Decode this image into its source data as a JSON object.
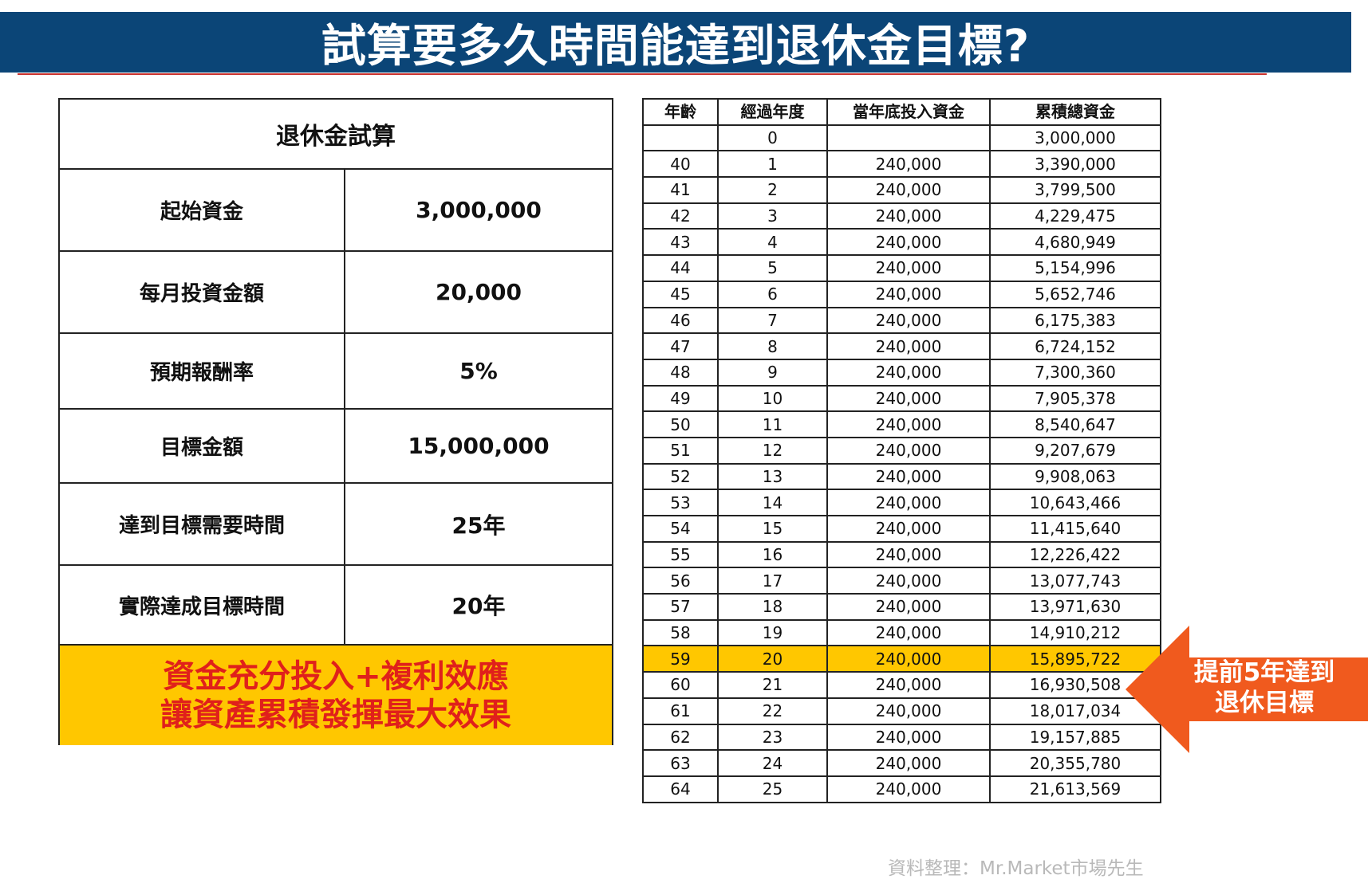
{
  "title": "試算要多久時間能達到退休金目標?",
  "summary": {
    "heading": "退休金試算",
    "rows": [
      {
        "label": "起始資金",
        "value": "3,000,000"
      },
      {
        "label": "每月投資金額",
        "value": "20,000"
      },
      {
        "label": "預期報酬率",
        "value": "5%"
      },
      {
        "label": "目標金額",
        "value": "15,000,000"
      },
      {
        "label": "達到目標需要時間",
        "value": "25年"
      },
      {
        "label": "實際達成目標時間",
        "value": "20年"
      }
    ],
    "footer_line1": "資金充分投入+複利效應",
    "footer_line2": "讓資產累積發揮最大效果"
  },
  "table": {
    "headers": [
      "年齡",
      "經過年度",
      "當年底投入資金",
      "累積總資金"
    ],
    "rows": [
      [
        "",
        "0",
        "",
        "3,000,000"
      ],
      [
        "40",
        "1",
        "240,000",
        "3,390,000"
      ],
      [
        "41",
        "2",
        "240,000",
        "3,799,500"
      ],
      [
        "42",
        "3",
        "240,000",
        "4,229,475"
      ],
      [
        "43",
        "4",
        "240,000",
        "4,680,949"
      ],
      [
        "44",
        "5",
        "240,000",
        "5,154,996"
      ],
      [
        "45",
        "6",
        "240,000",
        "5,652,746"
      ],
      [
        "46",
        "7",
        "240,000",
        "6,175,383"
      ],
      [
        "47",
        "8",
        "240,000",
        "6,724,152"
      ],
      [
        "48",
        "9",
        "240,000",
        "7,300,360"
      ],
      [
        "49",
        "10",
        "240,000",
        "7,905,378"
      ],
      [
        "50",
        "11",
        "240,000",
        "8,540,647"
      ],
      [
        "51",
        "12",
        "240,000",
        "9,207,679"
      ],
      [
        "52",
        "13",
        "240,000",
        "9,908,063"
      ],
      [
        "53",
        "14",
        "240,000",
        "10,643,466"
      ],
      [
        "54",
        "15",
        "240,000",
        "11,415,640"
      ],
      [
        "55",
        "16",
        "240,000",
        "12,226,422"
      ],
      [
        "56",
        "17",
        "240,000",
        "13,077,743"
      ],
      [
        "57",
        "18",
        "240,000",
        "13,971,630"
      ],
      [
        "58",
        "19",
        "240,000",
        "14,910,212"
      ],
      [
        "59",
        "20",
        "240,000",
        "15,895,722"
      ],
      [
        "60",
        "21",
        "240,000",
        "16,930,508"
      ],
      [
        "61",
        "22",
        "240,000",
        "18,017,034"
      ],
      [
        "62",
        "23",
        "240,000",
        "19,157,885"
      ],
      [
        "63",
        "24",
        "240,000",
        "20,355,780"
      ],
      [
        "64",
        "25",
        "240,000",
        "21,613,569"
      ]
    ],
    "highlight_row_index": 20,
    "highlight_color": "#ffc700"
  },
  "callout": {
    "line1": "提前5年達到",
    "line2": "退休目標",
    "color": "#f05a1e"
  },
  "source": "資料整理：Mr.Market市場先生",
  "colors": {
    "banner": "#0b4577",
    "footer_bg": "#ffc700",
    "footer_text": "#e0201b"
  }
}
